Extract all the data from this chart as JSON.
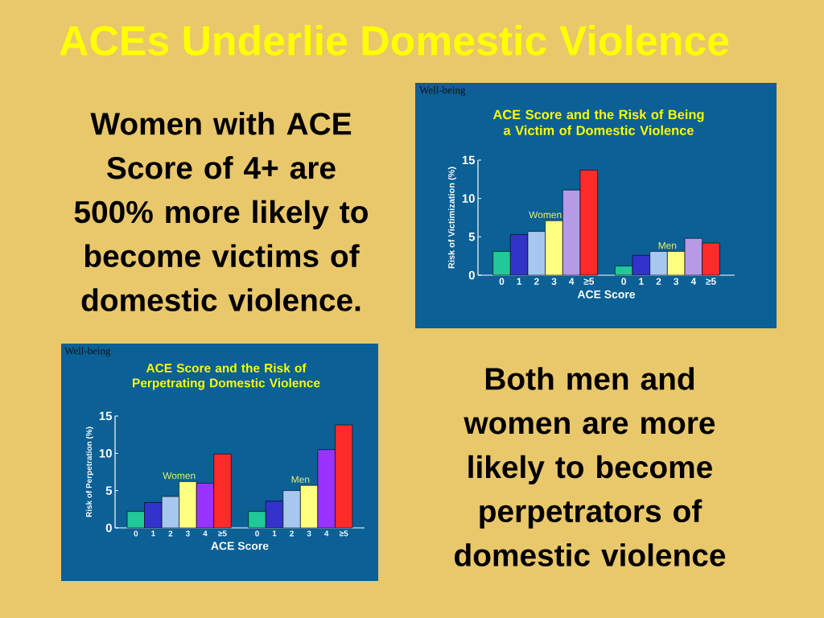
{
  "chart_data": [
    {
      "type": "other",
      "title": "ACEs Underlie Domestic Violence",
      "annotations": [
        "Women with ACE Score of 4+ are 500% more likely to become victims of domestic violence.",
        "Both men and women are more likely to become perpetrators of domestic violence"
      ]
    },
    {
      "type": "bar",
      "title": "ACE Score and the Risk of Being a Victim of Domestic Violence",
      "annotations": [
        "Well-being"
      ],
      "xlabel": "ACE Score",
      "ylabel": "Risk of Victimization (%)",
      "categories": [
        "0",
        "1",
        "2",
        "3",
        "4",
        "≥5",
        null,
        "0",
        "1",
        "2",
        "3",
        "4",
        "≥5"
      ],
      "series": [
        {
          "name": "Women",
          "values": [
            3.1,
            5.3,
            5.7,
            7.1,
            11.1,
            13.7,
            null,
            null,
            null,
            null,
            null,
            null,
            null
          ],
          "colors": [
            "#20c997",
            "#3333cc",
            "#a6c8f0",
            "#ffff80",
            "#b59ae6",
            "#ff2a2a",
            null,
            null,
            null,
            null,
            null,
            null,
            null
          ]
        },
        {
          "name": "Men",
          "values": [
            null,
            null,
            null,
            null,
            null,
            null,
            null,
            1.2,
            2.6,
            3.1,
            3.1,
            4.8,
            4.2
          ],
          "colors": [
            null,
            null,
            null,
            null,
            null,
            null,
            null,
            "#20c997",
            "#3333cc",
            "#a6c8f0",
            "#ffff80",
            "#b59ae6",
            "#ff2a2a"
          ]
        }
      ],
      "ylim": [
        0,
        15
      ],
      "yticks": [
        0,
        5,
        10,
        15
      ]
    },
    {
      "type": "bar",
      "title": "ACE Score and the Risk of Perpetrating Domestic Violence",
      "annotations": [
        "Well-being"
      ],
      "xlabel": "ACE Score",
      "ylabel": "Risk of Perpetration (%)",
      "categories": [
        "0",
        "1",
        "2",
        "3",
        "4",
        "≥5",
        null,
        "0",
        "1",
        "2",
        "3",
        "4",
        "≥5"
      ],
      "series": [
        {
          "name": "Women",
          "values": [
            2.2,
            3.4,
            4.2,
            6.2,
            6.0,
            9.9,
            null,
            null,
            null,
            null,
            null,
            null,
            null
          ],
          "colors": [
            "#20c997",
            "#3333cc",
            "#a6c8f0",
            "#ffff80",
            "#9933ff",
            "#ff2a2a",
            null,
            null,
            null,
            null,
            null,
            null,
            null
          ]
        },
        {
          "name": "Men",
          "values": [
            null,
            null,
            null,
            null,
            null,
            null,
            null,
            2.2,
            3.6,
            5.0,
            5.7,
            10.5,
            13.8
          ],
          "colors": [
            null,
            null,
            null,
            null,
            null,
            null,
            null,
            "#20c997",
            "#3333cc",
            "#a6c8f0",
            "#ffff80",
            "#9933ff",
            "#ff2a2a"
          ]
        }
      ],
      "ylim": [
        0,
        15
      ],
      "yticks": [
        0,
        5,
        10,
        15
      ]
    }
  ]
}
